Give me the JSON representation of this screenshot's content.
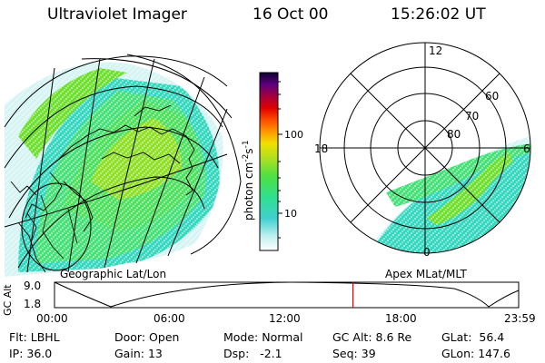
{
  "header": {
    "instrument": "Ultraviolet Imager",
    "date": "16 Oct 00",
    "time": "15:26:02 UT"
  },
  "colorbar": {
    "unit": "photon cm",
    "unit_exp1": "-2",
    "unit_s": "s",
    "unit_exp2": "-1",
    "tick_high": "100",
    "tick_low": "10"
  },
  "geo_panel": {
    "label": "Geographic Lat/Lon"
  },
  "polar_panel": {
    "label": "Apex MLat/MLT",
    "mlt_labels": {
      "top": "12",
      "left": "18",
      "right": "6",
      "bottom": "0"
    },
    "lat_labels": [
      "60",
      "70",
      "80"
    ]
  },
  "timeline": {
    "y_label": "GC Alt",
    "y_max": "9.0",
    "y_min": "1.8",
    "ticks": [
      "00:00",
      "06:00",
      "12:00",
      "18:00",
      "23:59"
    ],
    "marker_fraction": 0.6431
  },
  "footer": {
    "flt": {
      "label": "Flt:",
      "value": "LBHL"
    },
    "ip": {
      "label": "IP:",
      "value": "36.0"
    },
    "door": {
      "label": "Door:",
      "value": "Open"
    },
    "gain": {
      "label": "Gain:",
      "value": "13"
    },
    "mode": {
      "label": "Mode:",
      "value": "Normal"
    },
    "dsp": {
      "label": "Dsp:",
      "value": "-2.1"
    },
    "gcalt": {
      "label": "GC Alt:",
      "value": "8.6 Re"
    },
    "seq": {
      "label": "Seq:",
      "value": "39"
    },
    "glat": {
      "label": "GLat:",
      "value": "56.4"
    },
    "glon": {
      "label": "GLon:",
      "value": "147.6"
    }
  },
  "colors": {
    "marker": "#dd0000",
    "aurora_low": "#30d0c8",
    "aurora_mid": "#40e070",
    "aurora_high": "#a0e020"
  }
}
